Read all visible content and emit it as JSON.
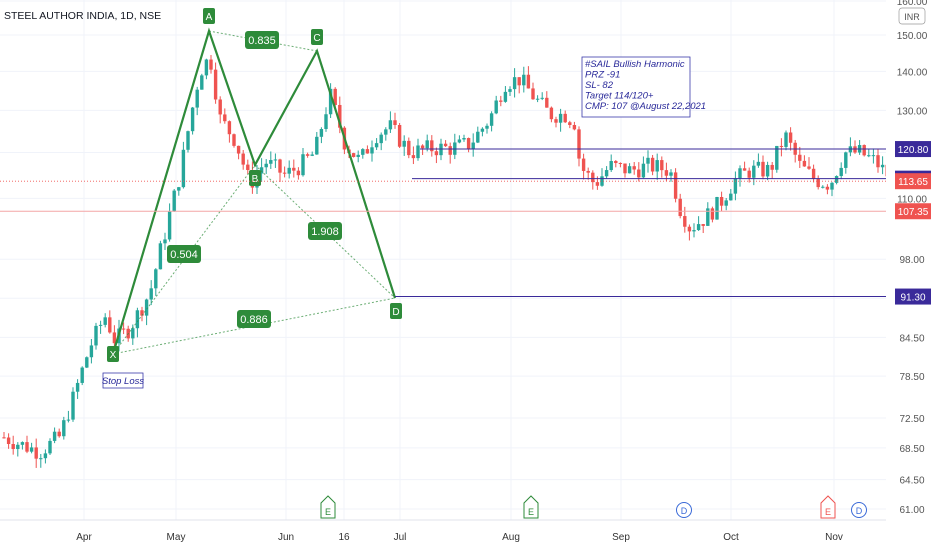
{
  "header": {
    "title": "STEEL AUTHOR INDIA, 1D, NSE"
  },
  "currency": "INR",
  "colors": {
    "up": "#26a69a",
    "down": "#ef5350",
    "pattern": "#2e8b3a",
    "level": "#3a2a9a",
    "last": "#ef5350"
  },
  "chart_data": {
    "type": "candlestick",
    "title": "STEEL AUTHOR INDIA, 1D, NSE",
    "y_scale": "log",
    "ylim": [
      60,
      162
    ],
    "y_ticks": [
      "160.00",
      "150.00",
      "140.00",
      "130.00",
      "120.00",
      "110.00",
      "98.00",
      "91.00",
      "84.50",
      "78.50",
      "72.50",
      "68.50",
      "64.50",
      "61.00"
    ],
    "x_ticks": [
      "Apr",
      "May",
      "Jun",
      "16",
      "Jul",
      "Aug",
      "Sep",
      "Oct",
      "Nov"
    ],
    "grid": true,
    "harmonic_points": [
      {
        "label": "A",
        "date": "May 3",
        "price": 151
      },
      {
        "label": "B",
        "date": "May 26",
        "price": 112
      },
      {
        "label": "C",
        "date": "Jun 10",
        "price": 146
      },
      {
        "label": "D",
        "date": "Jul 1",
        "price": 91.3
      },
      {
        "label": "X",
        "date": "Apr 12",
        "price": 82
      }
    ],
    "ratios": [
      "0.835",
      "0.504",
      "1.908",
      "0.886"
    ],
    "levels": [
      {
        "price": 120.8,
        "label": "120.80",
        "kind": "line"
      },
      {
        "price": 114.2,
        "label": "114.20",
        "kind": "line"
      },
      {
        "price": 113.65,
        "label": "113.65",
        "kind": "last"
      },
      {
        "price": 107.35,
        "label": "107.35",
        "kind": "hline"
      },
      {
        "price": 91.3,
        "label": "91.30",
        "kind": "line"
      }
    ],
    "annotation_lines": [
      "#SAIL Bullish Harmonic",
      "PRZ -91",
      "SL- 82",
      "Target 114/120+",
      "CMP: 107 @August 22,2021"
    ],
    "stop_loss_label": "Stop Loss",
    "events": [
      "E",
      "E",
      "D",
      "E",
      "D"
    ]
  }
}
